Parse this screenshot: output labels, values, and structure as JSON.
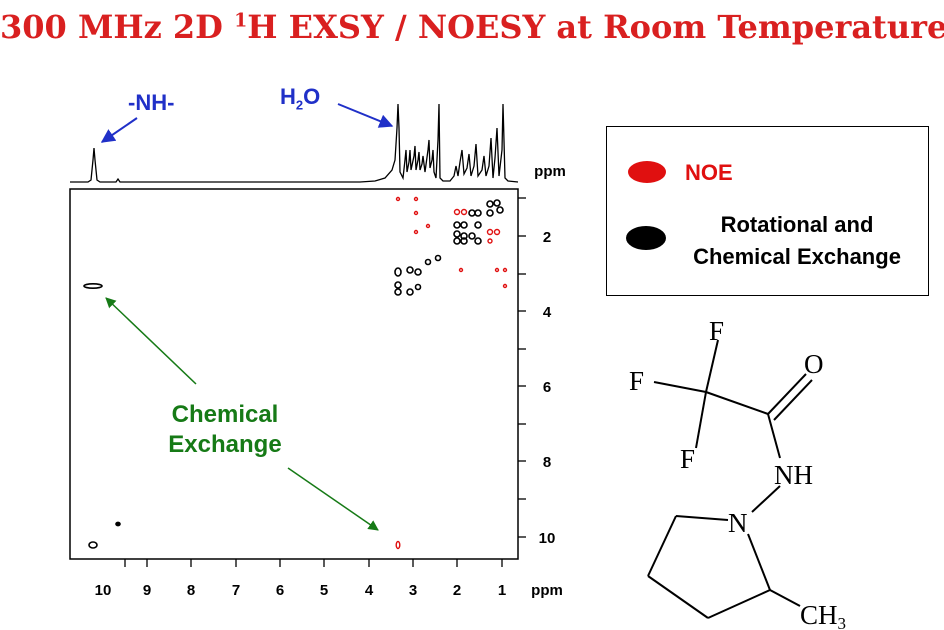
{
  "title": {
    "prefix": "300 MHz 2D ",
    "superscript": "1",
    "suffix": "H EXSY /  NOESY at Room Temperature"
  },
  "annotations": {
    "nh_label": "-NH-",
    "water_main": "H",
    "water_sub": "2",
    "water_tail": "O",
    "chemical_exchange_line1": "Chemical",
    "chemical_exchange_line2": "Exchange"
  },
  "spectrum": {
    "x_ticks": [
      "10",
      "9",
      "8",
      "7",
      "6",
      "5",
      "4",
      "3",
      "2",
      "1"
    ],
    "y_ticks": [
      "2",
      "4",
      "6",
      "8",
      "10"
    ],
    "x_unit": "ppm",
    "top_unit": "ppm"
  },
  "legend": {
    "noe_label": "NOE",
    "noe_color": "#e01010",
    "exchange_line1": "Rotational and",
    "exchange_line2": "Chemical Exchange",
    "exchange_color": "#000000"
  },
  "molecule": {
    "f_top": "F",
    "f_left": "F",
    "f_bottom": "F",
    "oxygen": "O",
    "nh": "NH",
    "n_ring": "N",
    "methyl": "CH",
    "methyl_sub": "3"
  },
  "colors": {
    "title": "#d92020",
    "annotation_blue": "#2030c8",
    "annotation_green": "#167a16"
  }
}
